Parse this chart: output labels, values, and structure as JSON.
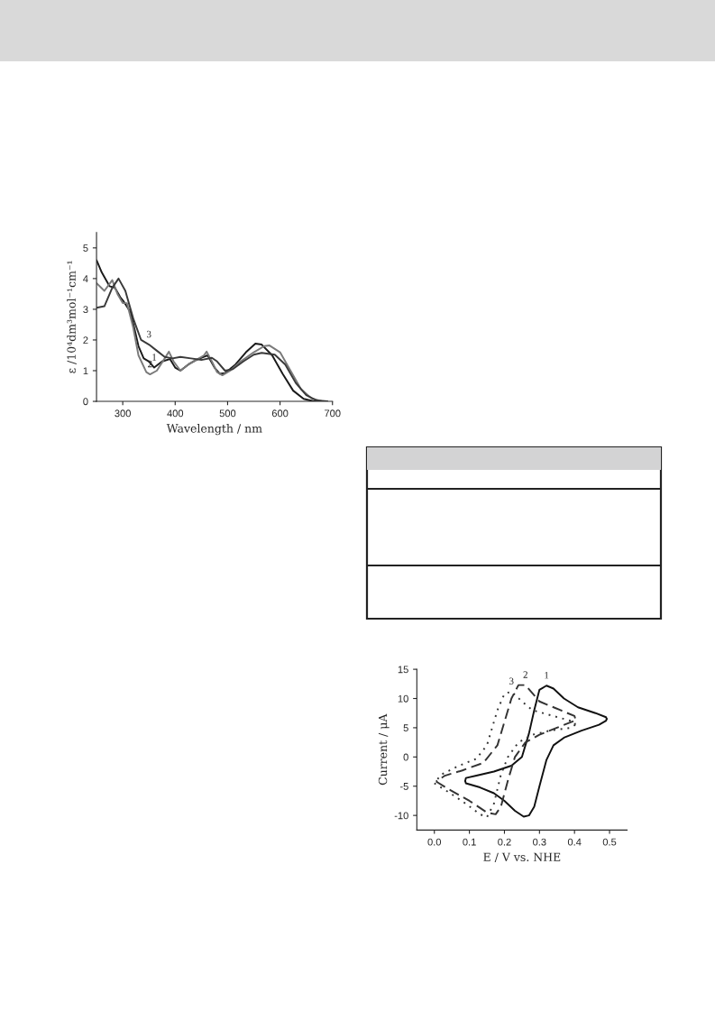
{
  "chart_data": [
    {
      "type": "line",
      "xlabel": "Wavelength / nm",
      "ylabel": "ε /10⁴dm³mol⁻¹cm⁻¹",
      "xlim": [
        250,
        700
      ],
      "xticks": [
        300,
        400,
        500,
        600,
        700
      ],
      "ylim": [
        0,
        5.5
      ],
      "yticks": [
        0,
        1,
        2,
        3,
        4,
        5
      ],
      "grid": false,
      "legend": false,
      "line_style": "solid",
      "series": [
        {
          "color": "#1a1a1a",
          "x": [
            250,
            260,
            275,
            285,
            295,
            302,
            315,
            330,
            340,
            350,
            360,
            375,
            390,
            400,
            410,
            425,
            440,
            455,
            462,
            475,
            485,
            495,
            515,
            535,
            553,
            565,
            585,
            605,
            625,
            645,
            665,
            690
          ],
          "values": [
            4.6,
            4.2,
            3.75,
            3.7,
            3.4,
            3.25,
            2.9,
            1.8,
            1.4,
            1.3,
            1.1,
            1.3,
            1.38,
            1.1,
            1.0,
            1.2,
            1.35,
            1.45,
            1.5,
            1.1,
            0.9,
            0.92,
            1.2,
            1.6,
            1.88,
            1.85,
            1.5,
            0.9,
            0.35,
            0.08,
            0.0,
            0.0
          ]
        },
        {
          "color": "#7a7a7a",
          "x": [
            250,
            265,
            280,
            290,
            300,
            308,
            320,
            330,
            345,
            352,
            365,
            380,
            388,
            397,
            410,
            425,
            440,
            455,
            460,
            470,
            480,
            490,
            505,
            525,
            550,
            570,
            580,
            600,
            620,
            640,
            660,
            680
          ],
          "values": [
            3.85,
            3.6,
            3.95,
            3.5,
            3.2,
            3.2,
            2.4,
            1.5,
            0.95,
            0.88,
            1.0,
            1.4,
            1.62,
            1.3,
            1.0,
            1.2,
            1.35,
            1.5,
            1.62,
            1.3,
            0.95,
            0.85,
            1.0,
            1.3,
            1.6,
            1.8,
            1.82,
            1.6,
            1.0,
            0.4,
            0.1,
            0.0
          ]
        },
        {
          "color": "#3a3a3a",
          "x": [
            250,
            265,
            280,
            292,
            305,
            320,
            335,
            350,
            365,
            380,
            395,
            410,
            430,
            450,
            470,
            480,
            495,
            510,
            530,
            550,
            565,
            590,
            610,
            630,
            650,
            670,
            690
          ],
          "values": [
            3.05,
            3.1,
            3.7,
            4.0,
            3.6,
            2.7,
            2.0,
            1.85,
            1.65,
            1.45,
            1.4,
            1.45,
            1.4,
            1.35,
            1.42,
            1.3,
            1.0,
            1.05,
            1.3,
            1.52,
            1.58,
            1.52,
            1.2,
            0.6,
            0.2,
            0.03,
            0.0
          ]
        }
      ],
      "annotations": [
        {
          "text": "1",
          "x": 360,
          "y": 1.1
        },
        {
          "text": "2",
          "x": 352,
          "y": 0.88
        },
        {
          "text": "3",
          "x": 350,
          "y": 1.85
        }
      ]
    },
    {
      "type": "line",
      "xlabel": "E / V vs. NHE",
      "ylabel": "Current / μA",
      "xlim": [
        -0.05,
        0.55
      ],
      "xticks": [
        {
          "value": 0,
          "label": "0.0"
        },
        0.1,
        0.2,
        0.3,
        0.4,
        0.5
      ],
      "ylim": [
        -12.5,
        15
      ],
      "yticks": [
        -10,
        -5,
        0,
        5,
        10,
        15
      ],
      "grid": false,
      "legend": false,
      "series": [
        {
          "color": "#111111",
          "line_style": "solid",
          "x": [
            0.088,
            0.09,
            0.13,
            0.17,
            0.2,
            0.23,
            0.255,
            0.27,
            0.285,
            0.3,
            0.32,
            0.34,
            0.37,
            0.42,
            0.47,
            0.49,
            0.492
          ],
          "values": [
            -4.1,
            -4.5,
            -5.2,
            -6.2,
            -7.5,
            -9.2,
            -10.2,
            -10,
            -8.5,
            -5,
            -0.5,
            2,
            3.3,
            4.5,
            5.5,
            6.2,
            6.5
          ]
        },
        {
          "color": "#111111",
          "line_style": "solid",
          "x": [
            0.492,
            0.49,
            0.46,
            0.41,
            0.37,
            0.34,
            0.32,
            0.3,
            0.285,
            0.27,
            0.25,
            0.22,
            0.17,
            0.12,
            0.09,
            0.088
          ],
          "values": [
            6.5,
            6.8,
            7.5,
            8.5,
            10,
            11.7,
            12.2,
            11.5,
            8,
            4,
            0,
            -1.5,
            -2.5,
            -3.2,
            -3.6,
            -4.1
          ]
        },
        {
          "color": "#333333",
          "line_style": "dashed",
          "x": [
            0.005,
            0.04,
            0.1,
            0.15,
            0.175,
            0.19,
            0.21,
            0.23,
            0.26,
            0.3,
            0.35,
            0.4,
            0.402
          ],
          "values": [
            -4.2,
            -5.5,
            -7.5,
            -9.5,
            -9.8,
            -8.5,
            -4,
            0,
            2.5,
            3.8,
            5,
            6.2,
            6.6
          ]
        },
        {
          "color": "#333333",
          "line_style": "dashed",
          "x": [
            0.402,
            0.4,
            0.36,
            0.3,
            0.26,
            0.24,
            0.22,
            0.2,
            0.18,
            0.14,
            0.08,
            0.03,
            0.005
          ],
          "values": [
            6.6,
            7,
            8,
            9.5,
            12.3,
            12.3,
            10,
            6,
            2,
            -1,
            -2.3,
            -3.2,
            -4.2
          ]
        },
        {
          "color": "#333333",
          "line_style": "dotted",
          "x": [
            0.0,
            0.04,
            0.09,
            0.13,
            0.15,
            0.17,
            0.19,
            0.21,
            0.24,
            0.28,
            0.33,
            0.39,
            0.402
          ],
          "values": [
            -4.5,
            -6,
            -8,
            -9.8,
            -10.3,
            -8,
            -3,
            0,
            2.5,
            3.8,
            4.5,
            5,
            5.5
          ]
        },
        {
          "color": "#333333",
          "line_style": "dotted",
          "x": [
            0.402,
            0.4,
            0.34,
            0.28,
            0.25,
            0.22,
            0.2,
            0.18,
            0.15,
            0.12,
            0.07,
            0.02,
            0.0
          ],
          "values": [
            5.5,
            6,
            7,
            8,
            9.5,
            11.2,
            10.8,
            8,
            2,
            -0.3,
            -1.5,
            -3,
            -4.5
          ]
        }
      ],
      "annotations": [
        {
          "text": "1",
          "x": 0.32,
          "y": 12.2
        },
        {
          "text": "2",
          "x": 0.26,
          "y": 12.3
        },
        {
          "text": "3",
          "x": 0.22,
          "y": 11.2
        }
      ]
    }
  ]
}
